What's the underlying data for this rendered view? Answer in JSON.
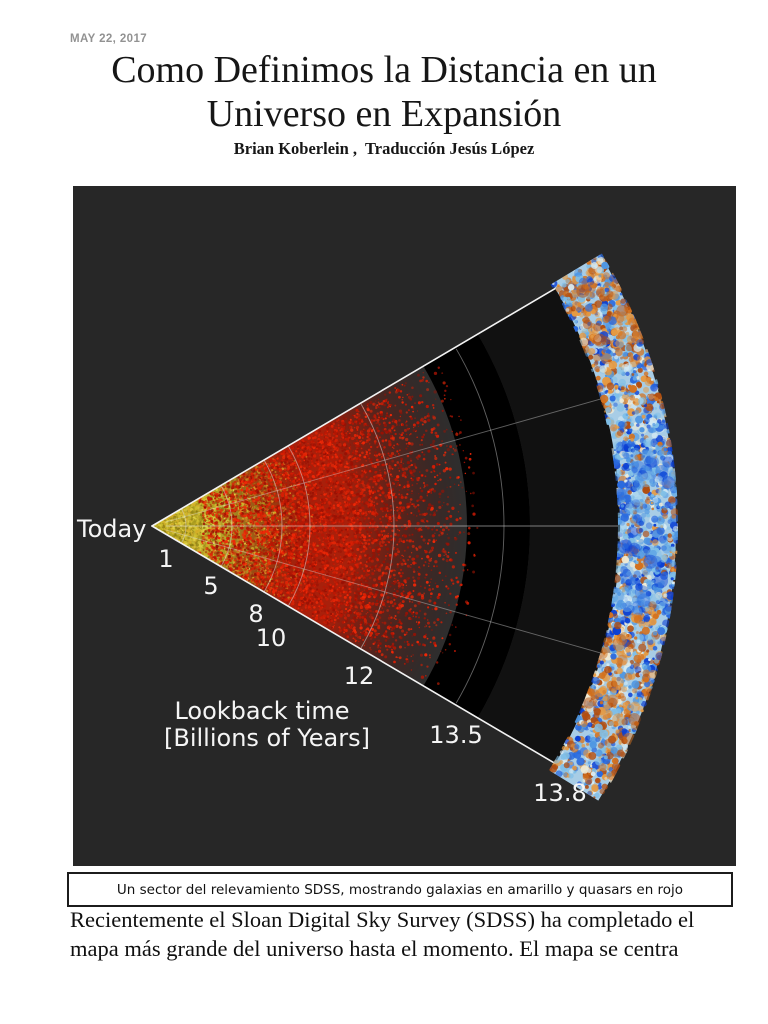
{
  "page": {
    "date": "MAY 22, 2017",
    "title_lines": [
      "Como Definimos la Distancia en un",
      "Universo en Expansión"
    ],
    "title": "Como Definimos la Distancia en un Universo en Expansión",
    "byline": "Brian Koberlein ,  Traducción Jesús López",
    "caption": "Un sector del relevamiento SDSS, mostrando galaxias en amarillo y quasars en rojo",
    "body_lines": [
      "Recientemente el Sloan Digital Sky Survey (SDSS) ha completado el",
      "mapa más grande del universo hasta el momento. El mapa se centra"
    ]
  },
  "figure": {
    "type": "polar-wedge-sky-survey",
    "origin_label": "Today",
    "axis_label_lines": [
      "Lookback time",
      "[Billions of Years]"
    ],
    "axis_unit": "Billions of Years",
    "ticks": [
      {
        "label": "1",
        "value": 1
      },
      {
        "label": "5",
        "value": 5
      },
      {
        "label": "8",
        "value": 8
      },
      {
        "label": "10",
        "value": 10
      },
      {
        "label": "12",
        "value": 12
      },
      {
        "label": "13.5",
        "value": 13.5
      },
      {
        "label": "13.8",
        "value": 13.8
      }
    ],
    "series": [
      {
        "name": "galaxias",
        "color": "#c9b832"
      },
      {
        "name": "quasars",
        "color": "#d81e04"
      },
      {
        "name": "CMB",
        "color": "#a8cde6"
      }
    ],
    "colors": {
      "background": "#272727",
      "wedge_interior": "#2e2e2e",
      "dark_band": "#000000",
      "outer_band": "#111111",
      "edge_line": "#f2f2f2",
      "grid_line": "#d9d9d9",
      "label_text": "#f5f5f5",
      "galaxy_yellow": [
        "#cdbd2e",
        "#a89a1e",
        "#e0d145",
        "#8c7d14",
        "#d4ad28"
      ],
      "galaxy_orange": [
        "#cf7d1c",
        "#dd9226",
        "#b5651a"
      ],
      "quasar_red": [
        "#d81e04",
        "#b81603",
        "#f02807",
        "#991104"
      ],
      "cmb_base": "#a8cde6",
      "cmb_blues": [
        "#0a3fd4",
        "#2a6ade",
        "#4f97e2",
        "#7fbfe8"
      ],
      "cmb_pales": [
        "#d9edf5",
        "#f1ecd6"
      ],
      "cmb_oranges": [
        "#e59a43",
        "#d2711f",
        "#b04c0f"
      ]
    }
  }
}
